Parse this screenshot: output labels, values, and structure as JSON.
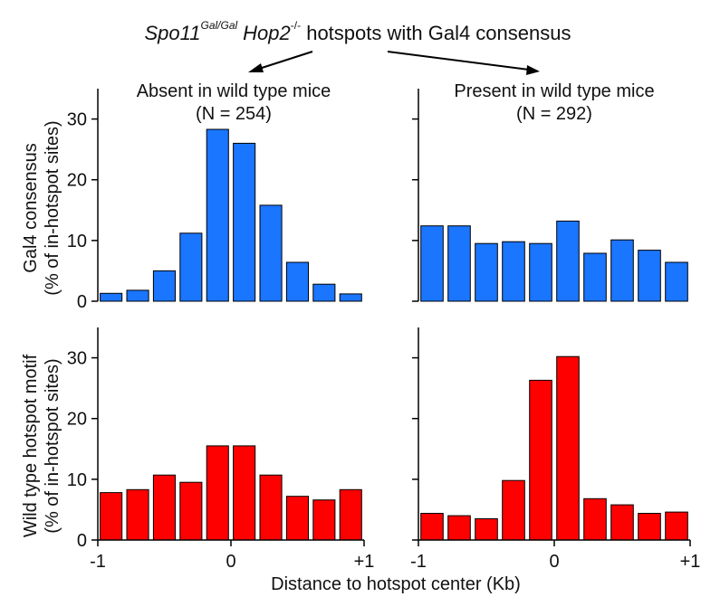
{
  "header": {
    "spo11": "Spo11",
    "spo11_sup": "Gal/Gal",
    "hop2": "Hop2",
    "hop2_sup": "-/-",
    "rest": " hotspots with Gal4 consensus"
  },
  "xlabel": "Distance to hotspot center (Kb)",
  "colors": {
    "top": "#1a75ff",
    "bottom": "#ff0000",
    "stroke": "#000000"
  },
  "chart_data": [
    {
      "type": "bar",
      "panel": "top-left",
      "title": "Absent in wild type mice",
      "subtitle": "(N = 254)",
      "ylabel": [
        "Gal4 consensus",
        "(% of in-hotspot sites)"
      ],
      "x": [
        -0.9,
        -0.7,
        -0.5,
        -0.3,
        -0.1,
        0.1,
        0.3,
        0.5,
        0.7,
        0.9
      ],
      "values": [
        1.3,
        1.8,
        5.0,
        11.2,
        28.3,
        26.0,
        15.8,
        6.4,
        2.8,
        1.2
      ],
      "xlim": [
        -1,
        1
      ],
      "ylim": [
        0,
        35
      ],
      "yticks": [
        "0",
        "10",
        "20",
        "30"
      ],
      "xticks": [
        "-1",
        "0",
        "+1"
      ]
    },
    {
      "type": "bar",
      "panel": "top-right",
      "title": "Present in wild type mice",
      "subtitle": "(N = 292)",
      "x": [
        -0.9,
        -0.7,
        -0.5,
        -0.3,
        -0.1,
        0.1,
        0.3,
        0.5,
        0.7,
        0.9
      ],
      "values": [
        12.4,
        12.4,
        9.5,
        9.8,
        9.5,
        13.2,
        7.9,
        10.1,
        8.4,
        6.4
      ],
      "xlim": [
        -1,
        1
      ],
      "ylim": [
        0,
        35
      ]
    },
    {
      "type": "bar",
      "panel": "bottom-left",
      "ylabel": [
        "Wild type hotspot motif",
        "(% of in-hotspot sites)"
      ],
      "x": [
        -0.9,
        -0.7,
        -0.5,
        -0.3,
        -0.1,
        0.1,
        0.3,
        0.5,
        0.7,
        0.9
      ],
      "values": [
        7.8,
        8.3,
        10.7,
        9.5,
        15.5,
        15.5,
        10.7,
        7.2,
        6.6,
        8.3
      ],
      "xlim": [
        -1,
        1
      ],
      "ylim": [
        0,
        35
      ],
      "yticks": [
        "0",
        "10",
        "20",
        "30"
      ],
      "xticks": [
        "-1",
        "0",
        "+1"
      ]
    },
    {
      "type": "bar",
      "panel": "bottom-right",
      "x": [
        -0.9,
        -0.7,
        -0.5,
        -0.3,
        -0.1,
        0.1,
        0.3,
        0.5,
        0.7,
        0.9
      ],
      "values": [
        4.4,
        4.0,
        3.5,
        9.8,
        26.3,
        30.2,
        6.8,
        5.8,
        4.4,
        4.6
      ],
      "xlim": [
        -1,
        1
      ],
      "ylim": [
        0,
        35
      ],
      "xticks": [
        "-1",
        "0",
        "+1"
      ]
    }
  ]
}
